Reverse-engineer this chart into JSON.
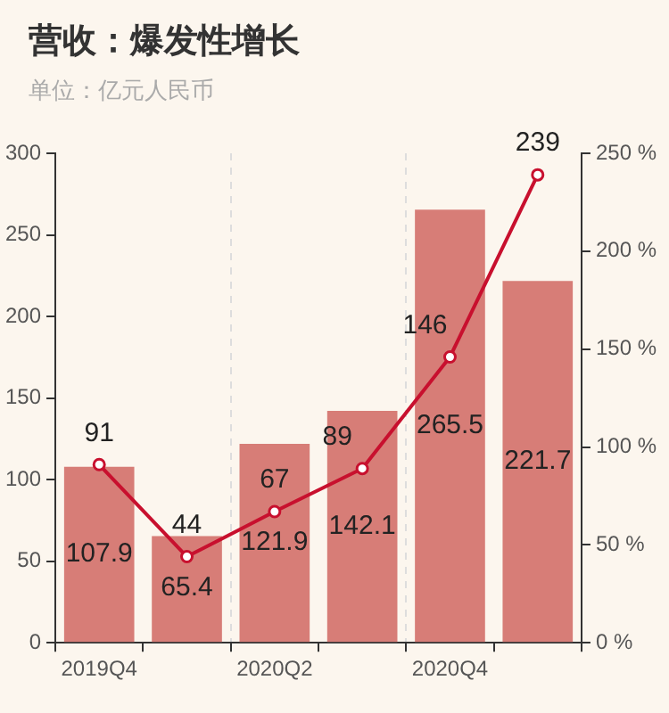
{
  "chart_data": {
    "type": "bar",
    "title": "营收：爆发性增长",
    "subtitle": "单位：亿元人民币",
    "categories": [
      "2019Q4",
      null,
      "2020Q2",
      null,
      "2020Q4",
      null
    ],
    "series": [
      {
        "color": "#d77d77",
        "values": [
          107.9,
          65.4,
          121.9,
          142.1,
          265.5,
          221.7
        ]
      },
      {
        "type": "line",
        "axis": "y2",
        "color": "#c8102e",
        "marker": "circle",
        "values": [
          91,
          44,
          67,
          89,
          146,
          239
        ]
      }
    ],
    "ylim": [
      0,
      300
    ],
    "yticks": [
      0,
      50,
      100,
      150,
      200,
      250,
      300
    ],
    "y2lim": [
      0,
      250
    ],
    "y2ticks": [
      {
        "value": 0,
        "label": "0 %"
      },
      {
        "value": 50,
        "label": "50 %"
      },
      {
        "value": 100,
        "label": "100 %"
      },
      {
        "value": 150,
        "label": "150 %"
      },
      {
        "value": 200,
        "label": "200 %"
      },
      {
        "value": 250,
        "label": "250 %"
      }
    ],
    "grid": "x",
    "legend": false,
    "data_labels": true
  }
}
